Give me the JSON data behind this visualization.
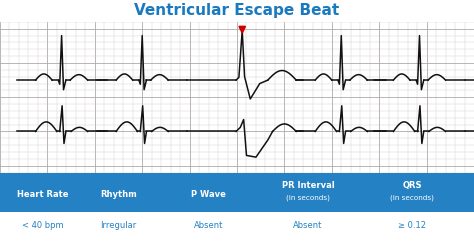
{
  "title": "Ventricular Escape Beat",
  "title_color": "#1a7abf",
  "title_fontsize": 11,
  "bg_ecg": "#e0dede",
  "grid_minor_color": "#c8c0c0",
  "grid_major_color": "#b0a8a8",
  "ecg_color": "#111111",
  "table_header_bg": "#2481c3",
  "table_header_color": "#ffffff",
  "table_value_color": "#2481c3",
  "table_bg": "#c8dff2",
  "headers": [
    "Heart Rate",
    "Rhythm",
    "P Wave",
    "PR Interval\n(in seconds)",
    "QRS\n(in seconds)"
  ],
  "values": [
    "< 40 bpm",
    "Irregular",
    "Absent",
    "Absent",
    "≥ 0.12"
  ],
  "arrow_color": "#cc0000",
  "figsize": [
    4.74,
    2.41
  ],
  "dpi": 100
}
